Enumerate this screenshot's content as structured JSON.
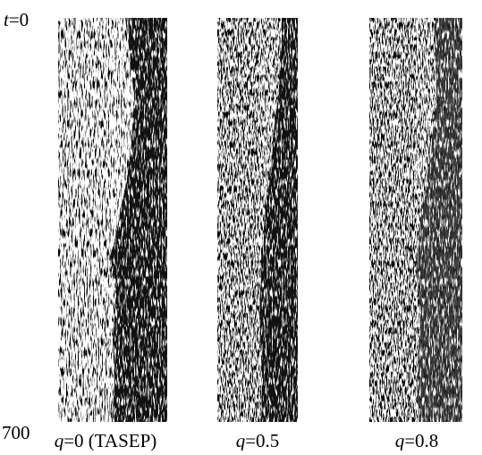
{
  "time_axis": {
    "top": {
      "variable": "t",
      "text": "=0"
    },
    "bottom": "700"
  },
  "panels": [
    {
      "variable": "q",
      "text": "=0 (TASEP)"
    },
    {
      "variable": "q",
      "text": "=0.5"
    },
    {
      "variable": "q",
      "text": "=0.8"
    }
  ]
}
